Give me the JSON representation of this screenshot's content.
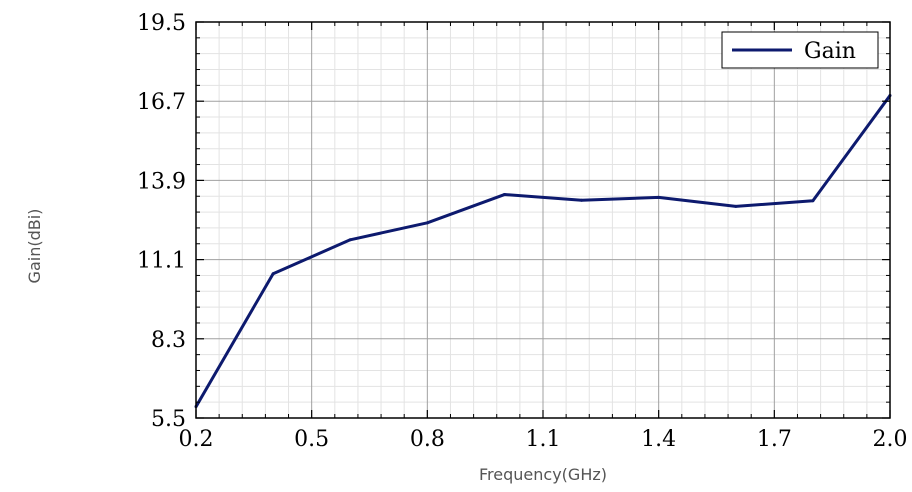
{
  "chart_data": {
    "type": "line",
    "xlabel": "Frequency(GHz)",
    "ylabel": "Gain(dBi)",
    "xlim": [
      0.2,
      2.0
    ],
    "ylim": [
      5.5,
      19.5
    ],
    "x_ticks": [
      "0.2",
      "0.5",
      "0.8",
      "1.1",
      "1.4",
      "1.7",
      "2.0"
    ],
    "y_ticks": [
      "5.5",
      "8.3",
      "11.1",
      "13.9",
      "16.7",
      "19.5"
    ],
    "grid": true,
    "legend_position": "top-right",
    "series": [
      {
        "name": "Gain",
        "color": "#0d1a6e",
        "x": [
          0.2,
          0.4,
          0.6,
          0.8,
          1.0,
          1.2,
          1.4,
          1.6,
          1.8,
          2.0
        ],
        "y": [
          5.9,
          10.6,
          11.8,
          12.4,
          13.4,
          13.2,
          13.3,
          12.98,
          13.18,
          16.9
        ]
      }
    ]
  }
}
